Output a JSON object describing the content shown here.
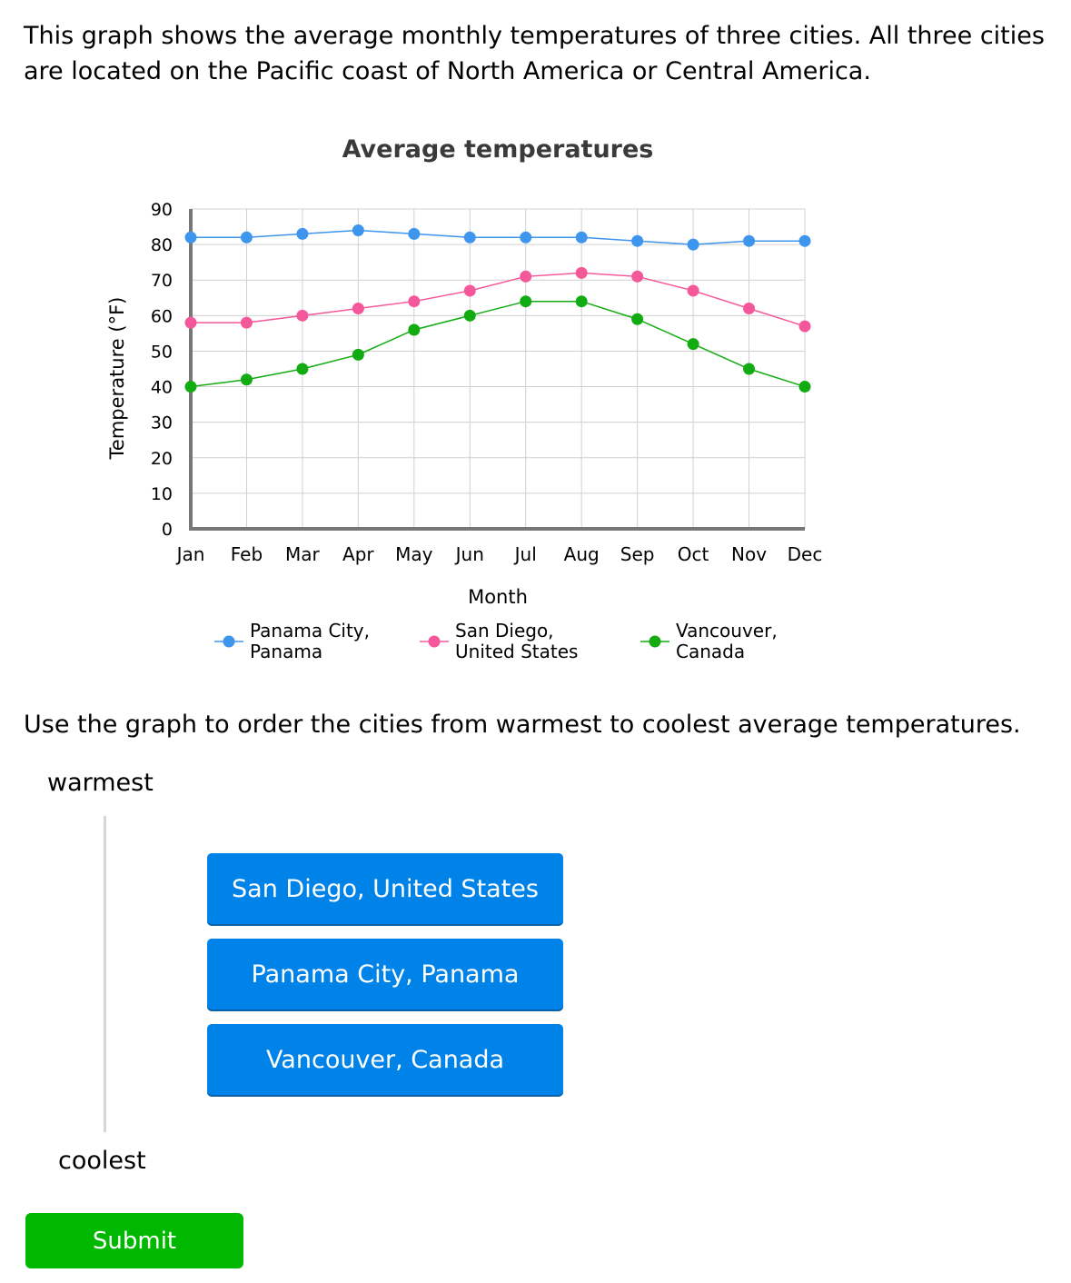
{
  "intro_text": "This graph shows the average monthly temperatures of three cities. All three cities are located on the Pacific coast of North America or Central America.",
  "instruction": "Use the graph to order the cities from warmest to coolest average temperatures.",
  "order": {
    "top_label": "warmest",
    "bottom_label": "coolest",
    "items": [
      "San Diego, United States",
      "Panama City, Panama",
      "Vancouver, Canada"
    ]
  },
  "submit_label": "Submit",
  "chart_data": {
    "type": "line",
    "title": "Average temperatures",
    "xlabel": "Month",
    "ylabel": "Temperature (°F)",
    "ylim": [
      0,
      90
    ],
    "yticks": [
      0,
      10,
      20,
      30,
      40,
      50,
      60,
      70,
      80,
      90
    ],
    "grid": true,
    "legend_position": "bottom",
    "categories": [
      "Jan",
      "Feb",
      "Mar",
      "Apr",
      "May",
      "Jun",
      "Jul",
      "Aug",
      "Sep",
      "Oct",
      "Nov",
      "Dec"
    ],
    "series": [
      {
        "name_line1": "Panama City,",
        "name_line2": "Panama",
        "color": "#3d95ee",
        "values": [
          82,
          82,
          83,
          84,
          83,
          82,
          82,
          82,
          81,
          80,
          81,
          81
        ]
      },
      {
        "name_line1": "San Diego,",
        "name_line2": "United States",
        "color": "#f5589a",
        "values": [
          58,
          58,
          60,
          62,
          64,
          67,
          71,
          72,
          71,
          67,
          62,
          57
        ]
      },
      {
        "name_line1": "Vancouver,",
        "name_line2": "Canada",
        "color": "#12ac12",
        "values": [
          40,
          42,
          45,
          49,
          56,
          60,
          64,
          64,
          59,
          52,
          45,
          40
        ]
      }
    ]
  }
}
